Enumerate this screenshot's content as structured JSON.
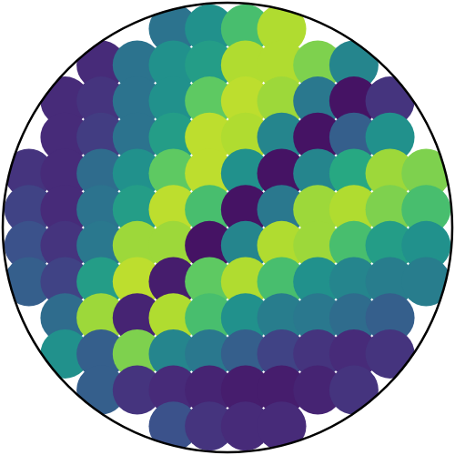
{
  "chart_data": {
    "type": "scatter",
    "marker": "circle",
    "tick_labels": false,
    "xlim": [
      -1,
      1
    ],
    "ylim": [
      -1,
      1
    ],
    "color_range": [
      0,
      1
    ],
    "x": [
      -0.24,
      -0.08,
      0.08,
      0.24,
      -0.56,
      -0.4,
      -0.24,
      -0.08,
      0.08,
      0.24,
      0.4,
      0.56,
      -0.72,
      -0.56,
      -0.4,
      -0.24,
      -0.08,
      0.08,
      0.24,
      0.4,
      0.56,
      0.72,
      -0.72,
      -0.56,
      -0.4,
      -0.24,
      -0.08,
      0.08,
      0.24,
      0.4,
      0.56,
      0.72,
      -0.88,
      -0.72,
      -0.56,
      -0.4,
      -0.24,
      -0.08,
      0.08,
      0.24,
      0.4,
      0.56,
      0.72,
      0.88,
      -0.88,
      -0.72,
      -0.56,
      -0.4,
      -0.24,
      -0.08,
      0.08,
      0.24,
      0.4,
      0.56,
      0.72,
      0.88,
      -0.88,
      -0.72,
      -0.56,
      -0.4,
      -0.24,
      -0.08,
      0.08,
      0.24,
      0.4,
      0.56,
      0.72,
      0.88,
      -0.88,
      -0.72,
      -0.56,
      -0.4,
      -0.24,
      -0.08,
      0.08,
      0.24,
      0.4,
      0.56,
      0.72,
      0.88,
      -0.72,
      -0.56,
      -0.4,
      -0.24,
      -0.08,
      0.08,
      0.24,
      0.4,
      0.56,
      0.72,
      -0.72,
      -0.56,
      -0.4,
      -0.24,
      -0.08,
      0.08,
      0.24,
      0.4,
      0.56,
      0.72,
      -0.56,
      -0.4,
      -0.24,
      -0.08,
      0.08,
      0.24,
      0.4,
      0.56,
      -0.24,
      -0.08,
      0.08,
      0.24
    ],
    "y": [
      0.88,
      0.88,
      0.88,
      0.88,
      0.72,
      0.72,
      0.72,
      0.72,
      0.72,
      0.72,
      0.72,
      0.72,
      0.56,
      0.56,
      0.56,
      0.56,
      0.56,
      0.56,
      0.56,
      0.56,
      0.56,
      0.56,
      0.4,
      0.4,
      0.4,
      0.4,
      0.4,
      0.4,
      0.4,
      0.4,
      0.4,
      0.4,
      0.24,
      0.24,
      0.24,
      0.24,
      0.24,
      0.24,
      0.24,
      0.24,
      0.24,
      0.24,
      0.24,
      0.24,
      0.08,
      0.08,
      0.08,
      0.08,
      0.08,
      0.08,
      0.08,
      0.08,
      0.08,
      0.08,
      0.08,
      0.08,
      -0.08,
      -0.08,
      -0.08,
      -0.08,
      -0.08,
      -0.08,
      -0.08,
      -0.08,
      -0.08,
      -0.08,
      -0.08,
      -0.08,
      -0.24,
      -0.24,
      -0.24,
      -0.24,
      -0.24,
      -0.24,
      -0.24,
      -0.24,
      -0.24,
      -0.24,
      -0.24,
      -0.24,
      -0.4,
      -0.4,
      -0.4,
      -0.4,
      -0.4,
      -0.4,
      -0.4,
      -0.4,
      -0.4,
      -0.4,
      -0.56,
      -0.56,
      -0.56,
      -0.56,
      -0.56,
      -0.56,
      -0.56,
      -0.56,
      -0.56,
      -0.56,
      -0.72,
      -0.72,
      -0.72,
      -0.72,
      -0.72,
      -0.72,
      -0.72,
      -0.72,
      -0.88,
      -0.88,
      -0.88,
      -0.88
    ],
    "values": [
      0.38,
      0.5,
      0.7,
      0.88,
      0.12,
      0.38,
      0.5,
      0.55,
      0.88,
      0.88,
      0.8,
      0.45,
      0.12,
      0.15,
      0.38,
      0.5,
      0.75,
      0.9,
      0.85,
      0.4,
      0.05,
      0.15,
      0.12,
      0.18,
      0.38,
      0.55,
      0.9,
      0.88,
      0.45,
      0.05,
      0.3,
      0.5,
      0.15,
      0.12,
      0.35,
      0.5,
      0.75,
      0.9,
      0.5,
      0.05,
      0.45,
      0.6,
      0.85,
      0.8,
      0.2,
      0.12,
      0.38,
      0.55,
      0.9,
      0.7,
      0.05,
      0.4,
      0.85,
      0.88,
      0.8,
      0.7,
      0.25,
      0.15,
      0.4,
      0.85,
      0.85,
      0.05,
      0.45,
      0.88,
      0.85,
      0.7,
      0.55,
      0.5,
      0.3,
      0.2,
      0.55,
      0.9,
      0.08,
      0.75,
      0.88,
      0.7,
      0.5,
      0.45,
      0.42,
      0.42,
      0.35,
      0.85,
      0.1,
      0.88,
      0.7,
      0.5,
      0.42,
      0.4,
      0.35,
      0.3,
      0.5,
      0.3,
      0.8,
      0.45,
      0.4,
      0.3,
      0.2,
      0.15,
      0.12,
      0.15,
      0.3,
      0.15,
      0.12,
      0.1,
      0.08,
      0.08,
      0.1,
      0.15,
      0.25,
      0.15,
      0.12,
      0.12
    ]
  }
}
